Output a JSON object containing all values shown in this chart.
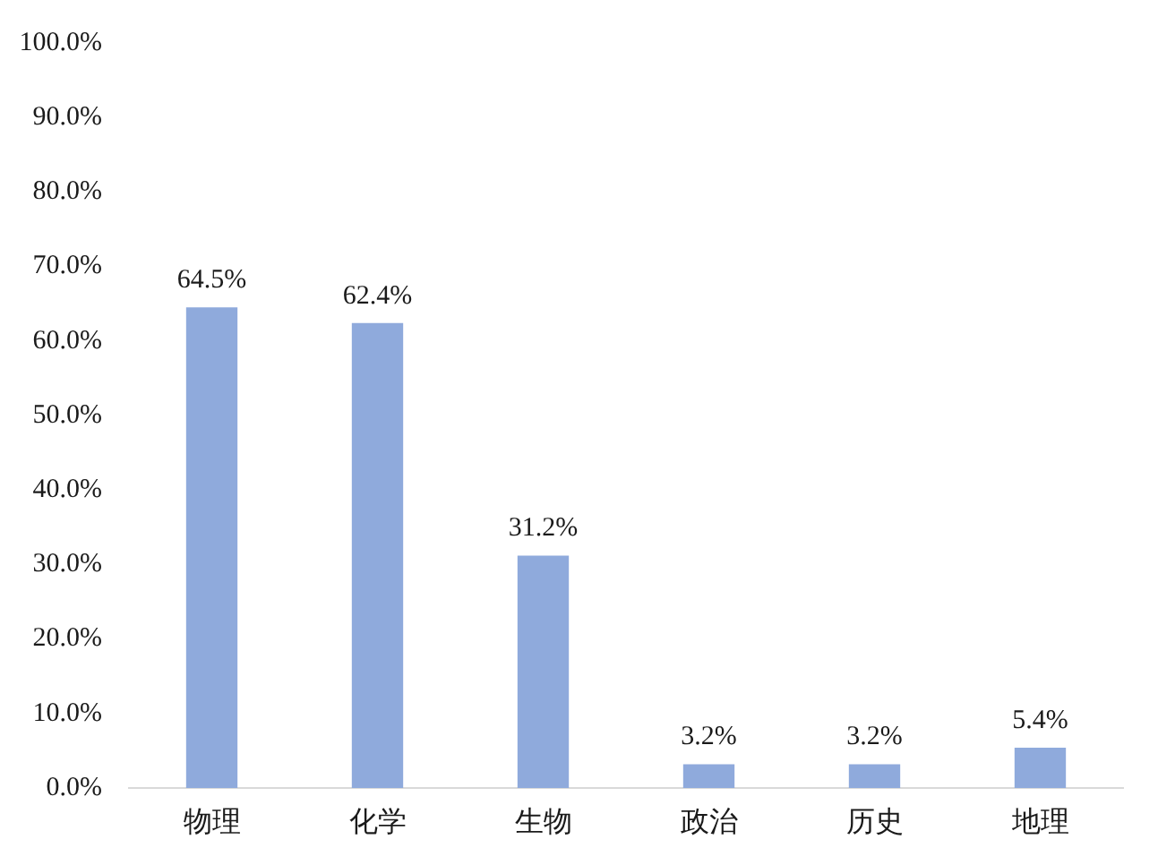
{
  "chart_data": {
    "type": "bar",
    "categories": [
      "物理",
      "化学",
      "生物",
      "政治",
      "历史",
      "地理"
    ],
    "values": [
      64.5,
      62.4,
      31.2,
      3.2,
      3.2,
      5.4
    ],
    "value_labels": [
      "64.5%",
      "62.4%",
      "31.2%",
      "3.2%",
      "3.2%",
      "5.4%"
    ],
    "color": "#8faadc",
    "ylim": [
      0,
      100
    ],
    "yticks": [
      {
        "value": 0,
        "label": "0.0%"
      },
      {
        "value": 10,
        "label": "10.0%"
      },
      {
        "value": 20,
        "label": "20.0%"
      },
      {
        "value": 30,
        "label": "30.0%"
      },
      {
        "value": 40,
        "label": "40.0%"
      },
      {
        "value": 50,
        "label": "50.0%"
      },
      {
        "value": 60,
        "label": "60.0%"
      },
      {
        "value": 70,
        "label": "70.0%"
      },
      {
        "value": 80,
        "label": "80.0%"
      },
      {
        "value": 90,
        "label": "90.0%"
      },
      {
        "value": 100,
        "label": "100.0%"
      }
    ]
  }
}
